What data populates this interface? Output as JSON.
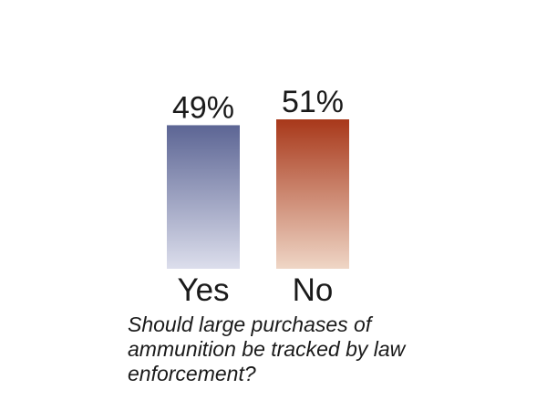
{
  "chart_data": {
    "type": "bar",
    "categories": [
      "Yes",
      "No"
    ],
    "values": [
      49,
      51
    ],
    "value_labels": [
      "49%",
      "51%"
    ],
    "ylim": [
      0,
      51
    ],
    "gridlines": false,
    "legend": "none",
    "bar_gradients": [
      {
        "top": "#5c6594",
        "bottom": "#dcdeec"
      },
      {
        "top": "#a8381a",
        "bottom": "#efd6c6"
      }
    ],
    "title": "Should large purchases of ammunition be tracked by law enforcement?"
  }
}
